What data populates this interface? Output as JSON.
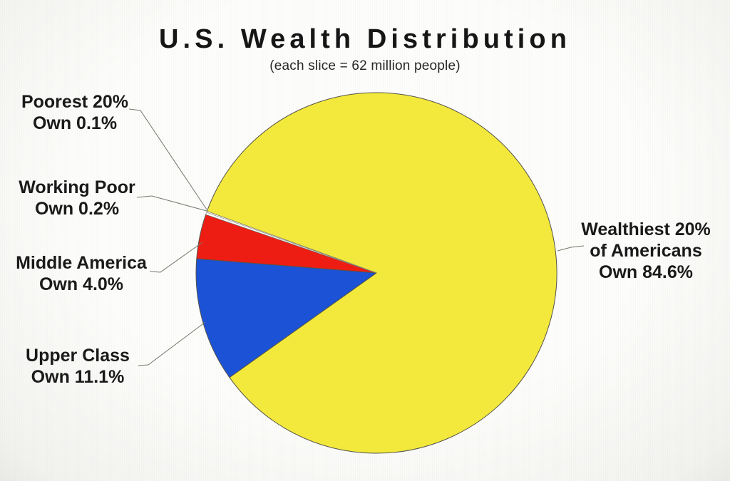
{
  "header": {
    "title": "U.S. Wealth Distribution",
    "subtitle": "(each slice = 62 million people)"
  },
  "chart_data": {
    "type": "pie",
    "title": "U.S. Wealth Distribution",
    "subtitle": "(each slice = 62 million people)",
    "note": "each slice = 62 million people",
    "categories": [
      "Poorest 20%",
      "Working Poor",
      "Middle America",
      "Upper Class",
      "Wealthiest 20% of Americans"
    ],
    "values": [
      0.1,
      0.2,
      4.0,
      11.1,
      84.6
    ],
    "unit": "percent of total wealth owned",
    "colors": [
      "#ffffff",
      "#ffffff",
      "#ee1d13",
      "#1b52d6",
      "#f2e93c"
    ],
    "outline_color": "#56534a",
    "sliver_outline_color": "#8a887e",
    "leader_line_color": "#77756c",
    "start_angle_deg": 160,
    "direction": "counterclockwise",
    "legend_position": "callout-labels"
  },
  "callouts": [
    {
      "line1": "Poorest 20%",
      "line2": "Own 0.1%"
    },
    {
      "line1": "Working Poor",
      "line2": "Own 0.2%"
    },
    {
      "line1": "Middle America",
      "line2": "Own 4.0%"
    },
    {
      "line1": "Upper Class",
      "line2": "Own 11.1%"
    },
    {
      "line1": "Wealthiest 20%",
      "line2": "of Americans",
      "line3": "Own 84.6%"
    }
  ]
}
